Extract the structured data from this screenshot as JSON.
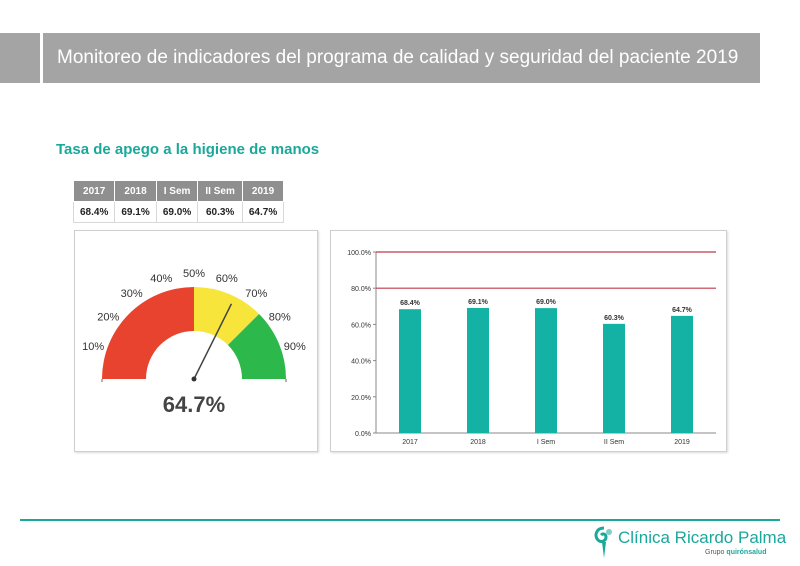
{
  "header": {
    "title": "Monitoreo de indicadores del programa de calidad y seguridad del paciente 2019"
  },
  "section": {
    "title": "Tasa de apego a la higiene de manos"
  },
  "summary_table": {
    "headers": [
      "2017",
      "2018",
      "I Sem",
      "II Sem",
      "2019"
    ],
    "values": [
      "68.4%",
      "69.1%",
      "69.0%",
      "60.3%",
      "64.7%"
    ]
  },
  "gauge": {
    "value": 64.7,
    "value_label": "64.7%",
    "tick_labels": [
      "10%",
      "20%",
      "30%",
      "40%",
      "50%",
      "60%",
      "70%",
      "80%",
      "90%"
    ],
    "bands": [
      {
        "from": 0,
        "to": 50,
        "color": "#e8432e"
      },
      {
        "from": 50,
        "to": 75,
        "color": "#f7e53b"
      },
      {
        "from": 75,
        "to": 100,
        "color": "#2db84c"
      }
    ]
  },
  "chart_data": {
    "type": "bar",
    "categories": [
      "2017",
      "2018",
      "I Sem",
      "II Sem",
      "2019"
    ],
    "values": [
      68.4,
      69.1,
      69.0,
      60.3,
      64.7
    ],
    "data_labels": [
      "68.4%",
      "69.1%",
      "69.0%",
      "60.3%",
      "64.7%"
    ],
    "y_tick_labels": [
      "0.0%",
      "20.0%",
      "40.0%",
      "60.0%",
      "80.0%",
      "100.0%"
    ],
    "ylim": [
      0,
      100
    ],
    "reference_lines": [
      80,
      100
    ],
    "bar_color": "#14b2a4",
    "reference_color": "#c0394b",
    "grid": false
  },
  "footer": {
    "logo_main": "Clínica Ricardo Palma",
    "logo_group": "Grupo",
    "logo_brand": "quirónsalud"
  }
}
